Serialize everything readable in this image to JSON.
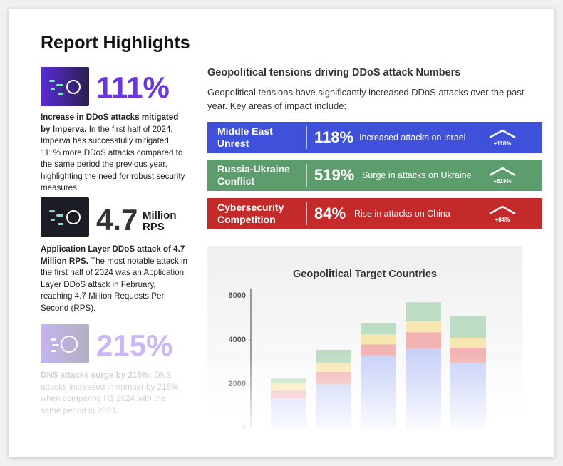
{
  "header": {
    "title": "Report Highlights"
  },
  "highlights": [
    {
      "figure": "111%",
      "lead": "Increase in DDoS attacks mitigated by Imperva.",
      "body": "In the first half of 2024, Imperva has successfully mitigated 111% more DDoS attacks compared to the same period the previous year, highlighting the need for robust security measures."
    },
    {
      "figure": "4.7",
      "unit": "Million RPS",
      "lead": "Application Layer DDoS attack of 4.7 Million RPS.",
      "body": "The most notable attack in the first half of 2024 was an Application Layer DDoS attack in February, reaching 4.7 Million Requests Per Second (RPS)."
    },
    {
      "figure": "215%",
      "lead": "DNS attacks surge by 215%:",
      "body": "DNS attacks increased in number by 215% when comparing H1 2024 with the same period in 2023."
    }
  ],
  "geopolitics": {
    "title": "Geopolitical tensions driving DDoS attack Numbers",
    "intro": "Geopolitical tensions have significantly increased DDoS attacks over the past year. Key areas of impact include:",
    "rows": [
      {
        "name": "Middle East Unrest",
        "percent": "118%",
        "description": "Increased attacks on Israel",
        "badge": "+118%"
      },
      {
        "name": "Russia-Ukraine Conflict",
        "percent": "519%",
        "description": "Surge in attacks on Ukraine",
        "badge": "+519%"
      },
      {
        "name": "Cybersecurity Competition",
        "percent": "84%",
        "description": "Rise in attacks on China",
        "badge": "+84%"
      }
    ]
  },
  "chart_data": {
    "type": "stacked_bar",
    "title": "Geopolitical Target Countries",
    "series": [
      {
        "color": "#c9d1f7",
        "values": [
          1350,
          2000,
          3300,
          3600,
          2950
        ]
      },
      {
        "color": "#f2b3b3",
        "values": [
          350,
          550,
          500,
          750,
          700
        ]
      },
      {
        "color": "#f6e6b0",
        "values": [
          350,
          400,
          450,
          500,
          450
        ]
      },
      {
        "color": "#bddcc4",
        "values": [
          200,
          600,
          500,
          850,
          1000
        ]
      }
    ],
    "ylim": [
      0,
      6000
    ],
    "yticks": [
      0,
      2000,
      4000,
      6000
    ]
  }
}
